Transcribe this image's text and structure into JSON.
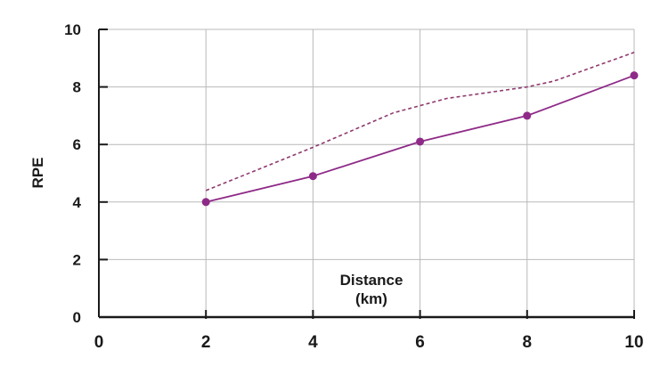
{
  "chart_data": {
    "type": "line",
    "xlabel": "Distance (km)",
    "xlabel_lines": [
      "Distance",
      "(km)"
    ],
    "ylabel": "RPE",
    "xlim": [
      0,
      10
    ],
    "ylim": [
      0,
      10
    ],
    "x_ticks": [
      0,
      2,
      4,
      6,
      8,
      10
    ],
    "y_ticks": [
      0,
      2,
      4,
      6,
      8,
      10
    ],
    "grid": true,
    "legend": "none",
    "series": [
      {
        "style": "solid",
        "markers": true,
        "color": "#8e2a87",
        "points": [
          {
            "x": 2,
            "y": 4.0
          },
          {
            "x": 4,
            "y": 4.9
          },
          {
            "x": 6,
            "y": 6.1
          },
          {
            "x": 8,
            "y": 7.0
          },
          {
            "x": 10,
            "y": 8.4
          }
        ]
      },
      {
        "style": "dashed",
        "markers": false,
        "color": "#8e3a6e",
        "points": [
          {
            "x": 2,
            "y": 4.4
          },
          {
            "x": 4,
            "y": 5.9
          },
          {
            "x": 5.5,
            "y": 7.1
          },
          {
            "x": 6.5,
            "y": 7.6
          },
          {
            "x": 8,
            "y": 8.0
          },
          {
            "x": 8.5,
            "y": 8.2
          },
          {
            "x": 10,
            "y": 9.2
          }
        ]
      }
    ]
  }
}
